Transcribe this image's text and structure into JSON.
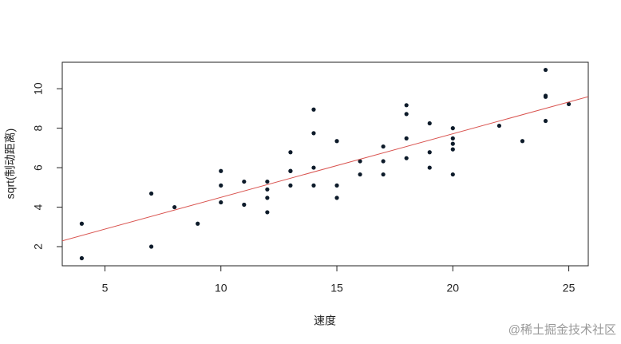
{
  "chart_data": {
    "type": "scatter",
    "xlabel": "速度",
    "ylabel": "sqrt(制动距离)",
    "x": [
      4,
      4,
      7,
      7,
      8,
      9,
      10,
      10,
      10,
      11,
      11,
      12,
      12,
      12,
      12,
      13,
      13,
      13,
      13,
      14,
      14,
      14,
      14,
      15,
      15,
      15,
      16,
      16,
      17,
      17,
      17,
      18,
      18,
      18,
      18,
      19,
      19,
      19,
      20,
      20,
      20,
      20,
      20,
      22,
      23,
      24,
      24,
      24,
      24,
      25
    ],
    "y": [
      1.414,
      3.162,
      2,
      4.69,
      4,
      3.162,
      4.243,
      5.099,
      5.831,
      4.123,
      5.292,
      3.742,
      4.472,
      4.899,
      5.292,
      5.099,
      5.831,
      5.831,
      6.782,
      5.099,
      6,
      7.746,
      8.944,
      4.472,
      5.099,
      7.348,
      5.657,
      6.325,
      5.657,
      6.325,
      7.071,
      6.481,
      7.483,
      8.718,
      9.165,
      6,
      6.782,
      8.246,
      5.657,
      6.928,
      7.211,
      7.483,
      8,
      8.124,
      7.348,
      8.367,
      9.592,
      9.644,
      10.954,
      9.22
    ],
    "point_color": "#0d1b2a",
    "fit": {
      "intercept": 1.277,
      "slope": 0.322,
      "color": "#d9534f"
    },
    "xlim": [
      3.16,
      25.84
    ],
    "ylim": [
      1.03,
      11.34
    ],
    "xticks": [
      5,
      10,
      15,
      20,
      25
    ],
    "yticks": [
      2,
      4,
      6,
      8,
      10
    ]
  },
  "watermark": "@稀土掘金技术社区"
}
